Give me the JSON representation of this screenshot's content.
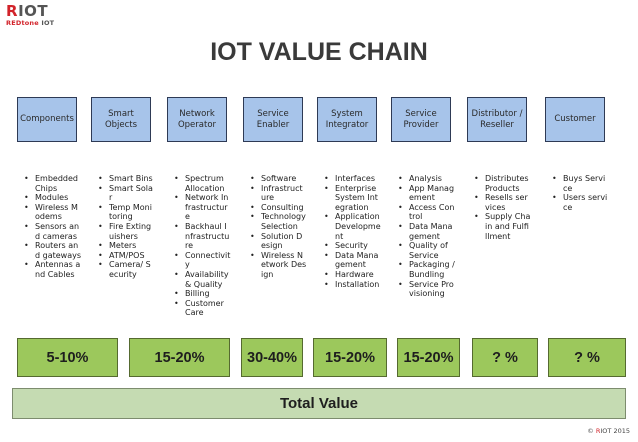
{
  "logo": {
    "text": "RIOT",
    "subtitle_red": "REDtone",
    "subtitle": " IOT"
  },
  "title": "IOT VALUE CHAIN",
  "stages": [
    "Components",
    "Smart Objects",
    "Network Operator",
    "Service Enabler",
    "System Integrator",
    "Service Provider",
    "Distributor / Reseller",
    "Customer"
  ],
  "lists": [
    [
      "Embedded Chips",
      "Modules",
      "Wireless Modems",
      "Sensors and cameras",
      "Routers and gateways",
      "Antennas and Cables"
    ],
    [
      "Smart Bins",
      "Smart Solar",
      "Temp Monitoring",
      "Fire Extinguishers",
      "Meters",
      "ATM/POS",
      "Camera/ Security"
    ],
    [
      "Spectrum Allocation",
      "Network Infrastructure",
      "Backhaul Infrastructure",
      "Connectivity",
      "Availability & Quality",
      "Billing",
      "Customer Care"
    ],
    [
      "Software",
      "Infrastructure",
      "Consulting",
      "Technology Selection",
      "Solution Design",
      "Wireless Network Design"
    ],
    [
      "Interfaces",
      "Enterprise System Integration",
      "Application Development",
      "Security",
      "Data Management",
      "Hardware",
      "Installation"
    ],
    [
      "Analysis",
      "App Management",
      "Access Control",
      "Data Management",
      "Quality of Service",
      "Packaging / Bundling",
      "Service Provisioning"
    ],
    [
      "Distributes Products",
      "Resells services",
      "Supply Chain and Fulfillment"
    ],
    [
      "Buys Service",
      "Users service"
    ]
  ],
  "percentages": [
    "5-10%",
    "15-20%",
    "30-40%",
    "15-20%",
    "15-20%",
    "? %",
    "? %"
  ],
  "total_value": "Total Value",
  "copyright": {
    "prefix": "© ",
    "red": "R",
    "rest": "IOT 2015"
  }
}
